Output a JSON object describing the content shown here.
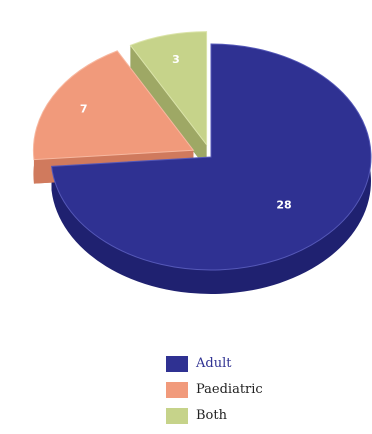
{
  "chart_data": {
    "type": "pie",
    "style": "3d-exploded",
    "slices": [
      {
        "name": "Adult",
        "value": 28,
        "color": "#2f3192",
        "side": "#1f2170",
        "edge": "#5558b8"
      },
      {
        "name": "Paediatric",
        "value": 7,
        "color": "#f19a7b",
        "side": "#d07a5d",
        "edge": "#f7b8a0"
      },
      {
        "name": "Both",
        "value": 3,
        "color": "#c6d38a",
        "side": "#9ea865",
        "edge": "#dbe4aa"
      }
    ],
    "legend_placement": "bottom-center"
  }
}
